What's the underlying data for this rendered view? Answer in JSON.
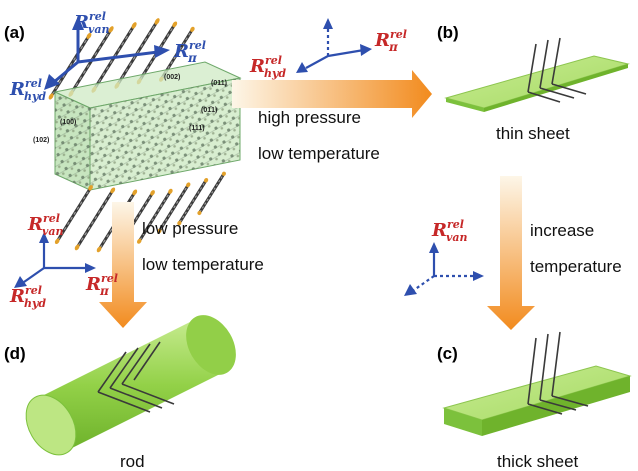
{
  "panels": {
    "a": {
      "label": "(a)"
    },
    "b": {
      "label": "(b)",
      "caption": "thin sheet"
    },
    "c": {
      "label": "(c)",
      "caption": "thick sheet"
    },
    "d": {
      "label": "(d)",
      "caption": "rod"
    }
  },
  "facets": [
    "(002)",
    "(011)",
    "(01̄1)",
    "(100)",
    "(102)",
    "(111̄)"
  ],
  "arrows": {
    "a_to_b": {
      "line1": "high pressure",
      "line2": "low temperature"
    },
    "a_to_d": {
      "line1": "low pressure",
      "line2": "low temperature"
    },
    "b_to_c": {
      "line1": "increase",
      "line2": "temperature"
    }
  },
  "symbols": {
    "R": "R",
    "rel": "rel",
    "van": "van",
    "hyd": "hyd",
    "pi": "π"
  },
  "colors": {
    "blue": "#2e4fae",
    "red": "#c62828",
    "green_top": "#b6e27a",
    "green_side": "#7cc13c",
    "arrow_start": "#fdf3e0",
    "arrow_end": "#f08a1c"
  }
}
